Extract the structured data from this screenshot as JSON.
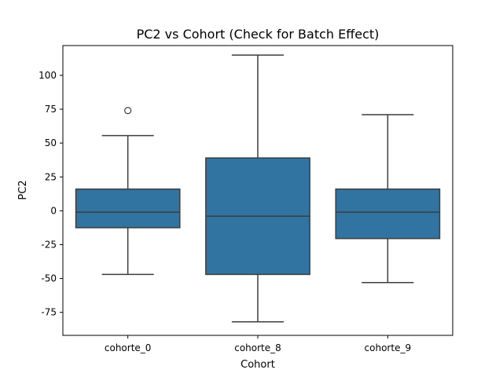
{
  "chart_data": {
    "type": "box",
    "title": "PC2 vs Cohort (Check for Batch Effect)",
    "xlabel": "Cohort",
    "ylabel": "PC2",
    "ylim": [
      -92,
      122
    ],
    "yticks": [
      -75,
      -50,
      -25,
      0,
      25,
      50,
      75,
      100
    ],
    "categories": [
      "cohorte_0",
      "cohorte_8",
      "cohorte_9"
    ],
    "boxes": [
      {
        "category": "cohorte_0",
        "whisker_low": -47,
        "q1": -12.5,
        "median": -1,
        "q3": 16,
        "whisker_high": 55.5,
        "outliers": [
          74
        ]
      },
      {
        "category": "cohorte_8",
        "whisker_low": -82,
        "q1": -47,
        "median": -4,
        "q3": 39,
        "whisker_high": 115,
        "outliers": []
      },
      {
        "category": "cohorte_9",
        "whisker_low": -53,
        "q1": -20.5,
        "median": -1,
        "q3": 16,
        "whisker_high": 71,
        "outliers": []
      }
    ],
    "box_color": "#3274a1",
    "line_color": "#3d3d3d",
    "grid": false,
    "legend": "none"
  }
}
